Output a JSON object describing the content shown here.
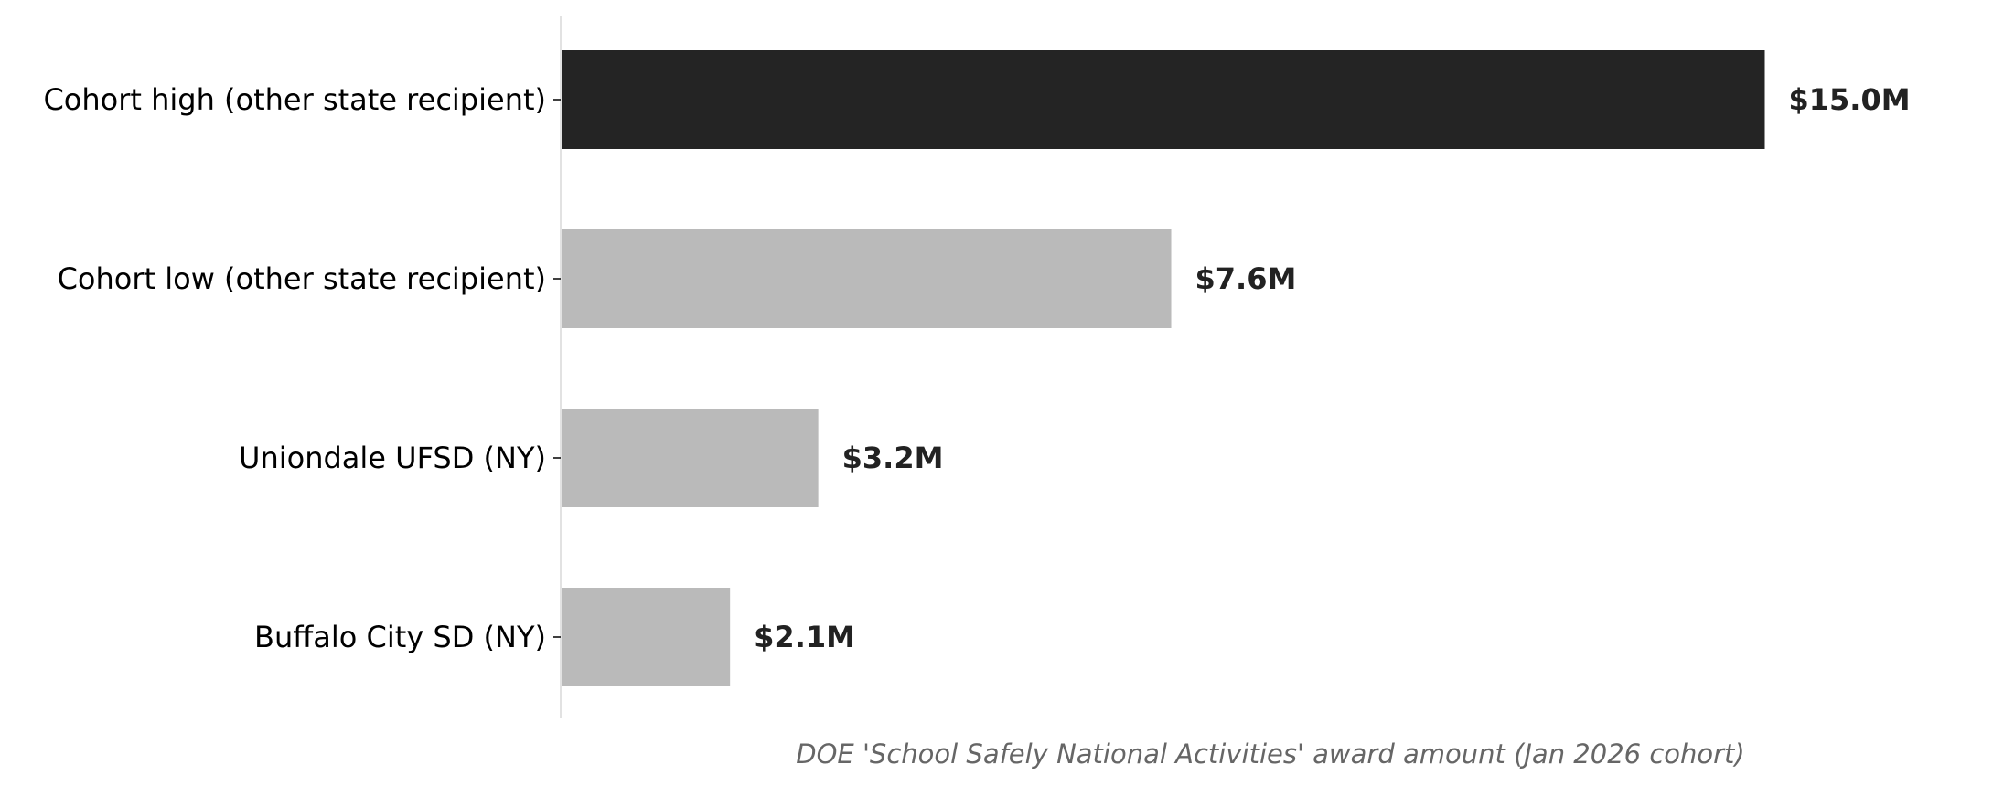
{
  "chart_data": {
    "type": "bar",
    "orientation": "horizontal",
    "categories": [
      "Cohort high (other state recipient)",
      "Cohort low (other state recipient)",
      "Uniondale UFSD (NY)",
      "Buffalo City SD (NY)"
    ],
    "values": [
      15.0,
      7.6,
      3.2,
      2.1
    ],
    "value_labels": [
      "$15.0M",
      "$7.6M",
      "$3.2M",
      "$2.1M"
    ],
    "unit": "$M",
    "highlight_index": 0,
    "colors": {
      "highlight": "#242424",
      "default": "#bababa",
      "value_text": "#222222",
      "axis_line": "#d9d9d9",
      "xlabel_text": "#666666"
    },
    "xlabel": "DOE 'School Safely National Activities' award amount (Jan 2026 cohort)",
    "ylabel": "",
    "title": "",
    "xlim": [
      0,
      17.2
    ],
    "grid": false,
    "legend": "none"
  }
}
